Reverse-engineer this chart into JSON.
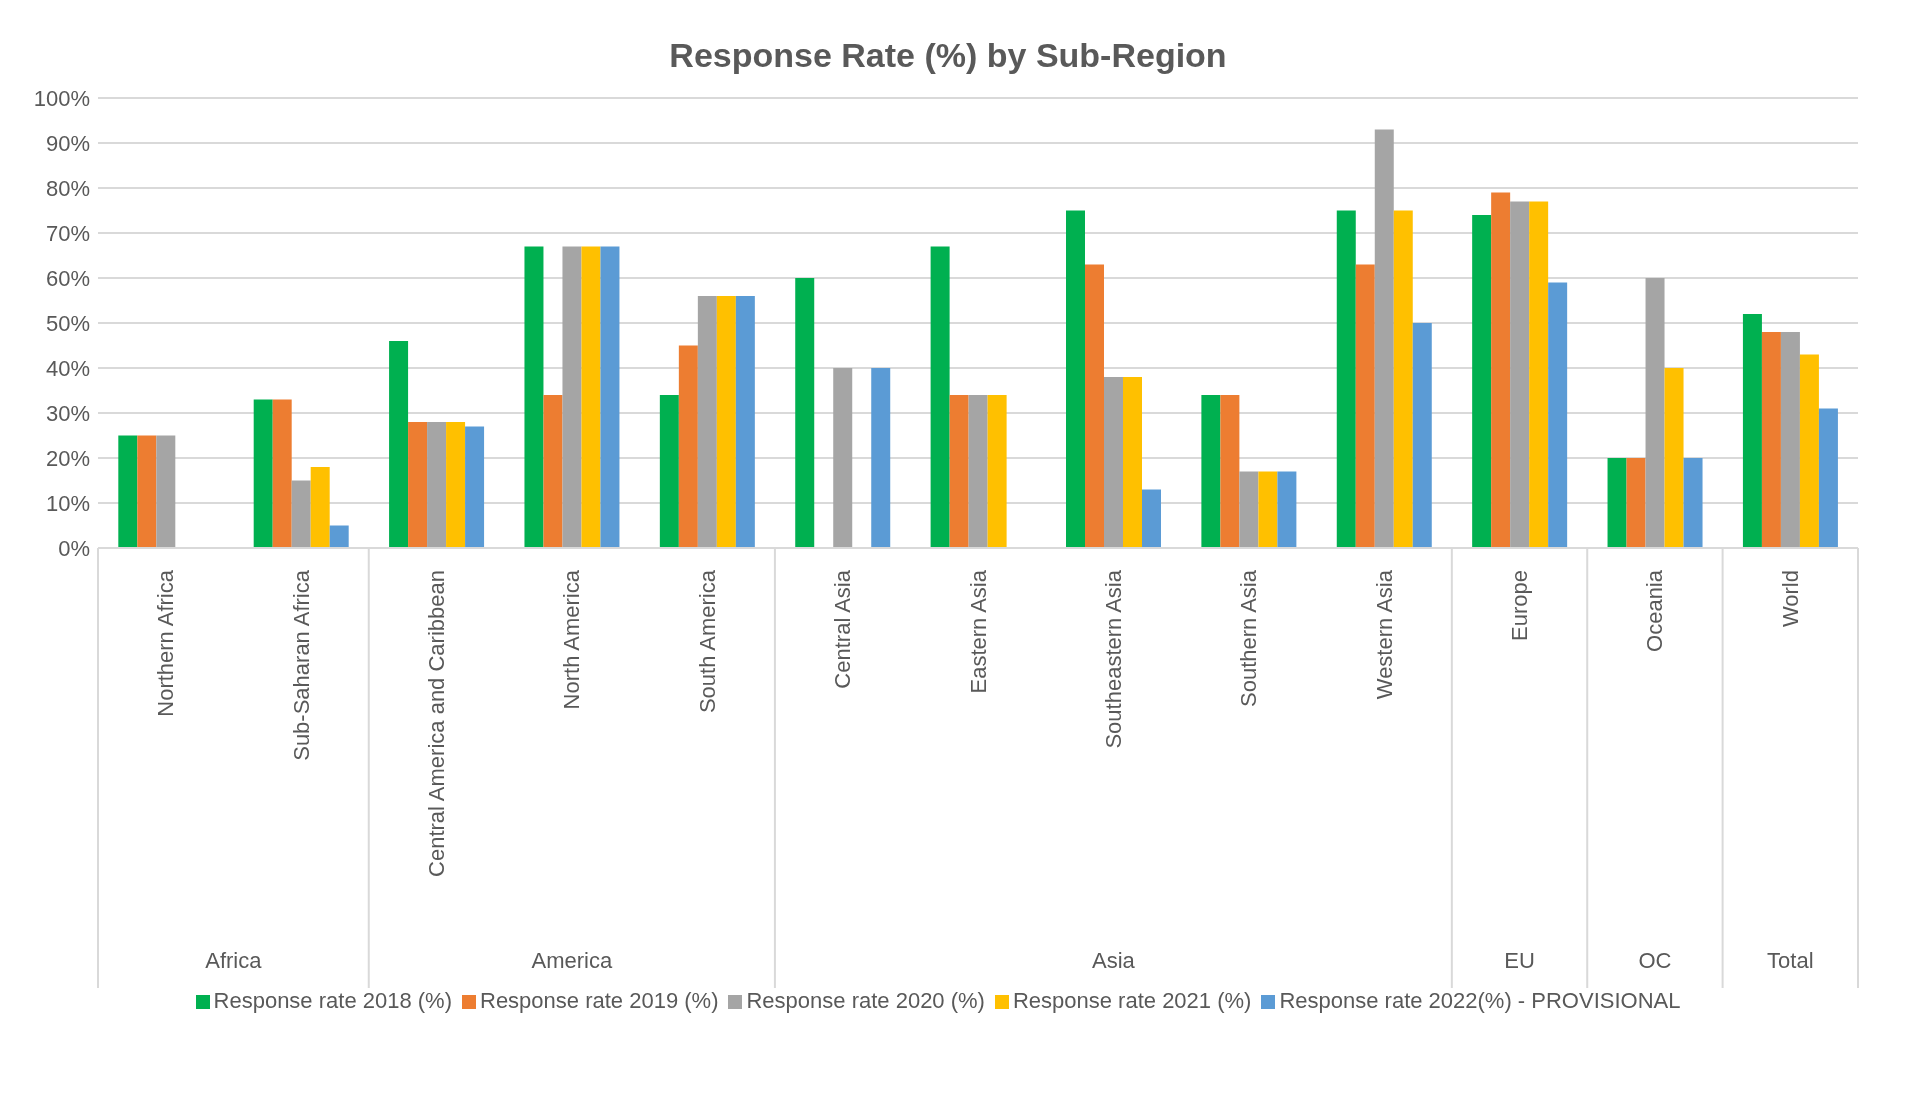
{
  "chart_data": {
    "type": "bar",
    "title": "Response Rate (%) by Sub-Region",
    "categories": [
      "Northern Africa",
      "Sub-Saharan Africa",
      "Central America and Caribbean",
      "North America",
      "South America",
      "Central Asia",
      "Eastern Asia",
      "Southeastern Asia",
      "Southern Asia",
      "Western Asia",
      "Europe",
      "Oceania",
      "World"
    ],
    "series": [
      {
        "name": "Response rate 2018 (%)",
        "color": "#00b050",
        "values": [
          25,
          33,
          46,
          67,
          34,
          60,
          67,
          75,
          34,
          75,
          74,
          20,
          52
        ]
      },
      {
        "name": "Response rate 2019 (%)",
        "color": "#ed7d31",
        "values": [
          25,
          33,
          28,
          34,
          45,
          null,
          34,
          63,
          34,
          63,
          79,
          20,
          48
        ]
      },
      {
        "name": "Response rate 2020 (%)",
        "color": "#a5a5a5",
        "values": [
          25,
          15,
          28,
          67,
          56,
          40,
          34,
          38,
          17,
          93,
          77,
          60,
          48
        ]
      },
      {
        "name": "Response rate 2021 (%)",
        "color": "#ffc000",
        "values": [
          null,
          18,
          28,
          67,
          56,
          null,
          34,
          38,
          17,
          75,
          77,
          40,
          43
        ]
      },
      {
        "name": "Response rate 2022(%)  - PROVISIONAL",
        "color": "#5b9bd5",
        "values": [
          null,
          5,
          27,
          67,
          56,
          40,
          null,
          13,
          17,
          50,
          59,
          20,
          31
        ]
      }
    ],
    "ylim": [
      0,
      100
    ],
    "yticks": [
      {
        "value": 0,
        "label": "0%"
      },
      {
        "value": 10,
        "label": "10%"
      },
      {
        "value": 20,
        "label": "20%"
      },
      {
        "value": 30,
        "label": "30%"
      },
      {
        "value": 40,
        "label": "40%"
      },
      {
        "value": 50,
        "label": "50%"
      },
      {
        "value": 60,
        "label": "60%"
      },
      {
        "value": 70,
        "label": "70%"
      },
      {
        "value": 80,
        "label": "80%"
      },
      {
        "value": 90,
        "label": "90%"
      },
      {
        "value": 100,
        "label": "100%"
      }
    ],
    "grid": "y",
    "legend": "bottom",
    "annotations": [
      "Africa",
      "America",
      "Asia",
      "EU",
      "OC",
      "Total"
    ]
  }
}
